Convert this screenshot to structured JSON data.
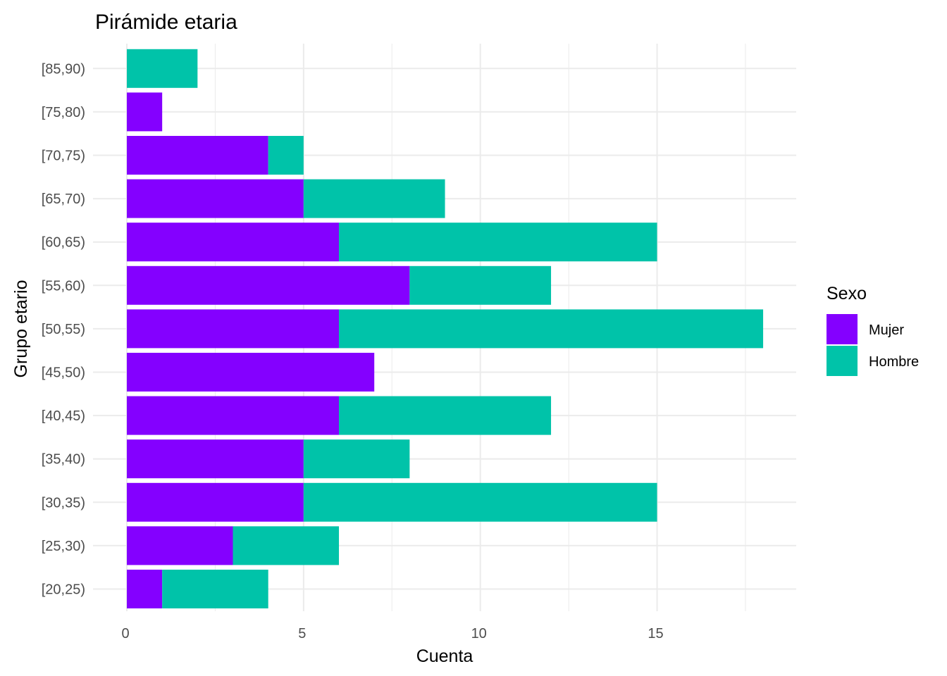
{
  "chart_data": {
    "type": "bar",
    "orientation": "horizontal",
    "stacked": true,
    "title": "Pirámide etaria",
    "xlabel": "Cuenta",
    "ylabel": "Grupo etario",
    "xlim": [
      0,
      18.9
    ],
    "x_ticks": [
      0,
      5,
      10,
      15
    ],
    "x_tick_labels": [
      "0",
      "5",
      "10",
      "15"
    ],
    "grid": true,
    "categories": [
      "[20,25)",
      "[25,30)",
      "[30,35)",
      "[35,40)",
      "[40,45)",
      "[45,50)",
      "[50,55)",
      "[55,60)",
      "[60,65)",
      "[65,70)",
      "[70,75)",
      "[75,80)",
      "[85,90)"
    ],
    "series": [
      {
        "name": "Mujer",
        "color": "#8400FF",
        "values": [
          1,
          3,
          5,
          5,
          6,
          7,
          6,
          8,
          6,
          5,
          4,
          1,
          0
        ]
      },
      {
        "name": "Hombre",
        "color": "#00C3A9",
        "values": [
          3,
          3,
          10,
          3,
          6,
          0,
          12,
          4,
          9,
          4,
          1,
          0,
          2
        ]
      }
    ],
    "legend": {
      "title": "Sexo",
      "position": "right"
    }
  }
}
